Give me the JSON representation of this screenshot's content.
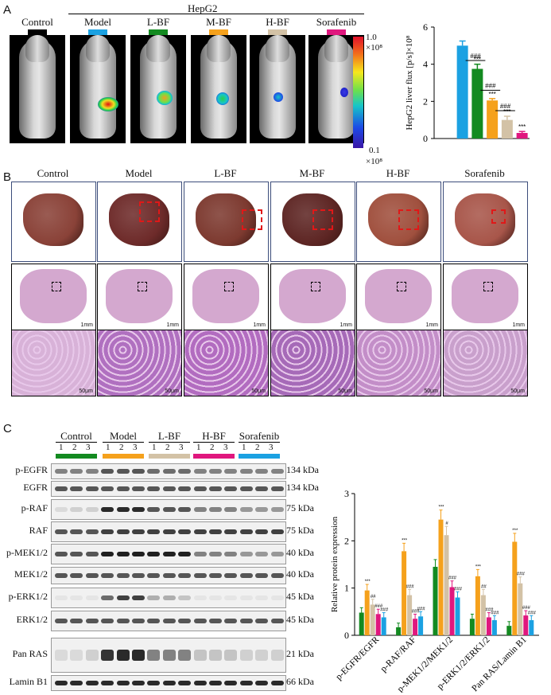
{
  "panels": {
    "a": "A",
    "b": "B",
    "c": "C"
  },
  "panel_a": {
    "cell_line": "HepG2",
    "groups": [
      {
        "label": "Control",
        "color": "#000000"
      },
      {
        "label": "Model",
        "color": "#1ba1e2"
      },
      {
        "label": "L-BF",
        "color": "#138a20"
      },
      {
        "label": "M-BF",
        "color": "#f5a11c"
      },
      {
        "label": "H-BF",
        "color": "#d3c2a6"
      },
      {
        "label": "Sorafenib",
        "color": "#e0177e"
      }
    ],
    "colorbar": {
      "max": "1.0",
      "max_unit": "×10⁸",
      "min": "0.1",
      "min_unit": "×10⁸"
    }
  },
  "chart_data": [
    {
      "type": "bar",
      "ylabel": "HepG2 liver flux [p/s]×10⁸",
      "ylim": [
        0,
        6
      ],
      "yticks": [
        "0",
        "2",
        "4",
        "6"
      ],
      "categories": [
        "Control",
        "Model",
        "L-BF",
        "M-BF",
        "H-BF",
        "Sorafenib"
      ],
      "values": [
        0,
        5.0,
        3.75,
        2.05,
        1.0,
        0.3
      ],
      "errors": [
        0,
        0.25,
        0.25,
        0.1,
        0.2,
        0.08
      ],
      "colors": [
        "#000000",
        "#1ba1e2",
        "#138a20",
        "#f5a11c",
        "#d3c2a6",
        "#e0177e"
      ],
      "annotations": [
        "",
        "",
        "***",
        "***",
        "***",
        "***"
      ],
      "comparisons": [
        "###",
        "###",
        "###"
      ]
    },
    {
      "type": "bar",
      "ylabel": "Relative protein expression",
      "ylim": [
        0,
        3
      ],
      "yticks": [
        "0",
        "1",
        "2",
        "3"
      ],
      "categories": [
        "p-EGFR/EGFR",
        "p-RAF/RAF",
        "p-MEK1/2/MEK1/2",
        "p-ERK1/2/ERK1/2",
        "Pan RAS/Lamin B1"
      ],
      "series": [
        {
          "name": "Control",
          "color": "#138a20",
          "values": [
            0.48,
            0.17,
            1.45,
            0.35,
            0.2
          ]
        },
        {
          "name": "Model",
          "color": "#f5a11c",
          "values": [
            0.95,
            1.78,
            2.45,
            1.25,
            1.98
          ]
        },
        {
          "name": "L-BF",
          "color": "#d3c2a6",
          "values": [
            0.65,
            0.85,
            2.12,
            0.85,
            1.1
          ]
        },
        {
          "name": "H-BF",
          "color": "#e0177e",
          "values": [
            0.45,
            0.35,
            1.02,
            0.38,
            0.42
          ]
        },
        {
          "name": "Sorafenib",
          "color": "#1ba1e2",
          "values": [
            0.38,
            0.4,
            0.8,
            0.32,
            0.32
          ]
        }
      ],
      "annotations": [
        [
          "",
          "***",
          "##",
          "###",
          "###"
        ],
        [
          "",
          "***",
          "###",
          "###",
          "###"
        ],
        [
          "",
          "***",
          "#",
          "###",
          "###"
        ],
        [
          "",
          "***",
          "##",
          "###",
          "###"
        ],
        [
          "",
          "***",
          "###",
          "###",
          "###"
        ]
      ]
    }
  ],
  "panel_b": {
    "groups": [
      "Control",
      "Model",
      "L-BF",
      "M-BF",
      "H-BF",
      "Sorafenib"
    ],
    "scale_hist": "1mm",
    "scale_micro": "50μm"
  },
  "panel_c": {
    "groups": [
      {
        "label": "Control",
        "color": "#138a20"
      },
      {
        "label": "Model",
        "color": "#f5a11c"
      },
      {
        "label": "L-BF",
        "color": "#d3c2a6"
      },
      {
        "label": "H-BF",
        "color": "#e0177e"
      },
      {
        "label": "Sorafenib",
        "color": "#1ba1e2"
      }
    ],
    "lane_numbers": [
      "1",
      "2",
      "3"
    ],
    "rows": [
      {
        "label": "p-EGFR",
        "kda": "134 kDa"
      },
      {
        "label": "EGFR",
        "kda": "134 kDa"
      },
      {
        "label": "p-RAF",
        "kda": "75 kDa"
      },
      {
        "label": "RAF",
        "kda": "75 kDa"
      },
      {
        "label": "p-MEK1/2",
        "kda": "40 kDa"
      },
      {
        "label": "MEK1/2",
        "kda": "40 kDa"
      },
      {
        "label": "p-ERK1/2",
        "kda": "45 kDa"
      },
      {
        "label": "ERK1/2",
        "kda": "45 kDa"
      },
      {
        "label": "Pan RAS",
        "kda": "21 kDa"
      },
      {
        "label": "Lamin B1",
        "kda": "66 kDa"
      }
    ]
  }
}
